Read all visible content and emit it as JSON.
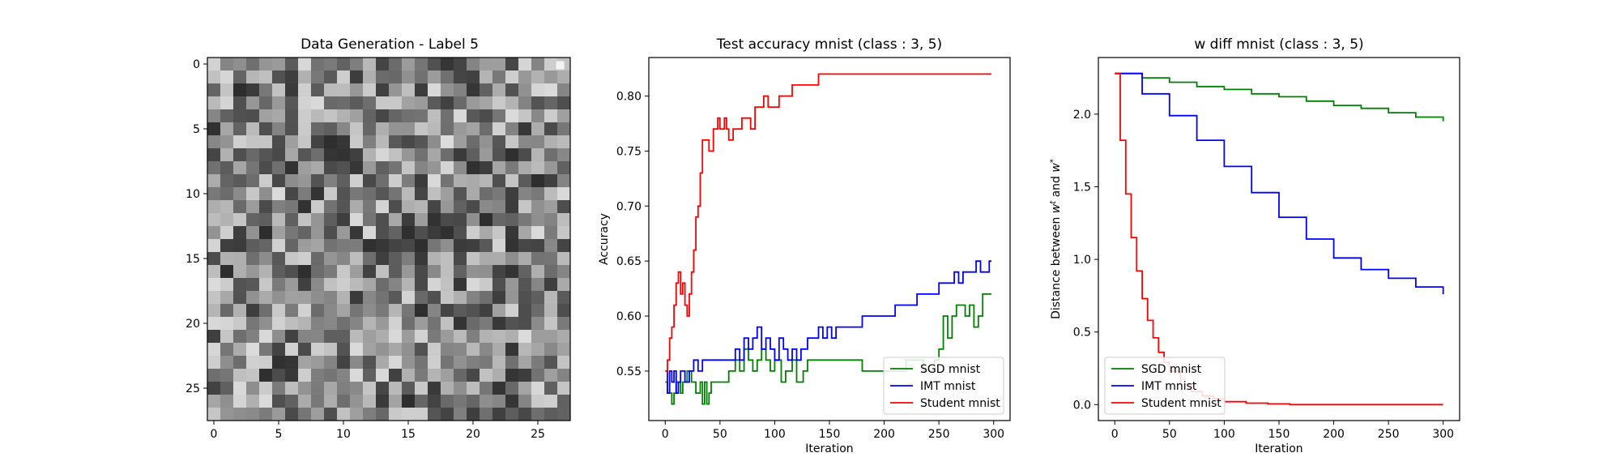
{
  "chart_data": [
    {
      "type": "heatmap",
      "title": "Data Generation - Label 5",
      "colormap": "gray",
      "xticks": [
        0,
        5,
        10,
        15,
        20,
        25
      ],
      "yticks": [
        0,
        5,
        10,
        15,
        20,
        25
      ],
      "xlim": [
        -0.5,
        27.5
      ],
      "ylim": [
        27.5,
        -0.5
      ],
      "rows": 28,
      "cols": 28,
      "legend": "top-right (empty)"
    },
    {
      "type": "line",
      "title": "Test accuracy mnist (class : 3, 5)",
      "xlabel": "Iteration",
      "ylabel": "Accuracy",
      "xlim": [
        -15,
        315
      ],
      "ylim": [
        0.505,
        0.835
      ],
      "xticks": [
        0,
        50,
        100,
        150,
        200,
        250,
        300
      ],
      "yticks": [
        0.55,
        0.6,
        0.65,
        0.7,
        0.75,
        0.8
      ],
      "tick_labels_y": [
        "0.55",
        "0.60",
        "0.65",
        "0.70",
        "0.75",
        "0.80"
      ],
      "legend": "lower-right",
      "series": [
        {
          "name": "SGD mnist",
          "color": "#008000",
          "x": [
            0,
            2,
            4,
            6,
            8,
            10,
            12,
            14,
            16,
            20,
            24,
            28,
            32,
            34,
            36,
            38,
            40,
            42,
            46,
            52,
            58,
            64,
            68,
            72,
            76,
            80,
            84,
            88,
            92,
            96,
            100,
            106,
            110,
            116,
            120,
            126,
            130,
            136,
            142,
            150,
            160,
            170,
            180,
            190,
            200,
            210,
            220,
            230,
            236,
            240,
            246,
            250,
            254,
            258,
            262,
            266,
            270,
            274,
            278,
            282,
            286,
            290,
            294,
            298
          ],
          "y": [
            0.54,
            0.53,
            0.53,
            0.52,
            0.53,
            0.54,
            0.54,
            0.53,
            0.54,
            0.55,
            0.54,
            0.53,
            0.54,
            0.52,
            0.54,
            0.52,
            0.53,
            0.54,
            0.54,
            0.54,
            0.55,
            0.56,
            0.55,
            0.57,
            0.56,
            0.55,
            0.56,
            0.57,
            0.56,
            0.55,
            0.56,
            0.54,
            0.55,
            0.56,
            0.54,
            0.55,
            0.56,
            0.56,
            0.56,
            0.56,
            0.56,
            0.56,
            0.55,
            0.55,
            0.55,
            0.55,
            0.56,
            0.56,
            0.55,
            0.55,
            0.56,
            0.57,
            0.6,
            0.58,
            0.6,
            0.61,
            0.61,
            0.6,
            0.61,
            0.59,
            0.6,
            0.62,
            0.62,
            0.62
          ]
        },
        {
          "name": "IMT mnist",
          "color": "#0000ff",
          "x": [
            0,
            2,
            4,
            6,
            8,
            10,
            12,
            14,
            18,
            22,
            26,
            30,
            34,
            40,
            46,
            50,
            56,
            60,
            64,
            68,
            72,
            76,
            80,
            84,
            88,
            92,
            96,
            100,
            104,
            108,
            112,
            116,
            120,
            124,
            130,
            136,
            140,
            144,
            148,
            152,
            156,
            160,
            170,
            180,
            190,
            200,
            210,
            220,
            230,
            240,
            250,
            256,
            260,
            264,
            268,
            272,
            276,
            280,
            284,
            288,
            292,
            296,
            298
          ],
          "y": [
            0.55,
            0.53,
            0.55,
            0.54,
            0.55,
            0.53,
            0.54,
            0.55,
            0.54,
            0.55,
            0.56,
            0.55,
            0.56,
            0.56,
            0.56,
            0.56,
            0.56,
            0.56,
            0.57,
            0.56,
            0.58,
            0.57,
            0.58,
            0.59,
            0.57,
            0.58,
            0.57,
            0.56,
            0.58,
            0.57,
            0.56,
            0.57,
            0.56,
            0.57,
            0.58,
            0.58,
            0.59,
            0.58,
            0.59,
            0.58,
            0.59,
            0.59,
            0.59,
            0.6,
            0.6,
            0.6,
            0.61,
            0.61,
            0.62,
            0.62,
            0.63,
            0.63,
            0.63,
            0.64,
            0.63,
            0.64,
            0.64,
            0.64,
            0.65,
            0.64,
            0.64,
            0.65,
            0.65
          ]
        },
        {
          "name": "Student mnist",
          "color": "#ff0000",
          "x": [
            0,
            2,
            4,
            6,
            8,
            10,
            12,
            14,
            16,
            18,
            20,
            22,
            24,
            26,
            28,
            30,
            32,
            34,
            36,
            40,
            44,
            48,
            50,
            52,
            54,
            56,
            58,
            62,
            66,
            70,
            74,
            78,
            82,
            86,
            90,
            94,
            98,
            104,
            110,
            116,
            124,
            130,
            136,
            140,
            150,
            170,
            200,
            230,
            260,
            298
          ],
          "y": [
            0.55,
            0.56,
            0.58,
            0.59,
            0.61,
            0.63,
            0.64,
            0.62,
            0.63,
            0.61,
            0.6,
            0.62,
            0.64,
            0.66,
            0.69,
            0.7,
            0.73,
            0.76,
            0.76,
            0.75,
            0.77,
            0.78,
            0.77,
            0.77,
            0.78,
            0.77,
            0.76,
            0.77,
            0.77,
            0.78,
            0.78,
            0.77,
            0.79,
            0.79,
            0.8,
            0.79,
            0.79,
            0.8,
            0.8,
            0.81,
            0.81,
            0.81,
            0.81,
            0.82,
            0.82,
            0.82,
            0.82,
            0.82,
            0.82,
            0.82
          ]
        }
      ]
    },
    {
      "type": "line",
      "title": "w diff mnist (class : 3, 5)",
      "xlabel": "Iteration",
      "ylabel": "Distance between w^t and w^*",
      "xlim": [
        -15,
        315
      ],
      "ylim": [
        -0.11,
        2.39
      ],
      "xticks": [
        0,
        50,
        100,
        150,
        200,
        250,
        300
      ],
      "yticks": [
        0.0,
        0.5,
        1.0,
        1.5,
        2.0
      ],
      "tick_labels_y": [
        "0.0",
        "0.5",
        "1.0",
        "1.5",
        "2.0"
      ],
      "legend": "lower-left",
      "series": [
        {
          "name": "SGD mnist",
          "color": "#008000",
          "x": [
            0,
            25,
            50,
            75,
            100,
            125,
            150,
            175,
            200,
            225,
            250,
            275,
            300
          ],
          "y": [
            2.28,
            2.25,
            2.22,
            2.19,
            2.17,
            2.14,
            2.12,
            2.09,
            2.06,
            2.04,
            2.01,
            1.98,
            1.95
          ]
        },
        {
          "name": "IMT mnist",
          "color": "#0000ff",
          "x": [
            0,
            25,
            50,
            75,
            100,
            125,
            150,
            175,
            200,
            225,
            250,
            275,
            300
          ],
          "y": [
            2.28,
            2.14,
            1.99,
            1.82,
            1.64,
            1.46,
            1.29,
            1.14,
            1.01,
            0.93,
            0.87,
            0.81,
            0.76
          ]
        },
        {
          "name": "Student mnist",
          "color": "#ff0000",
          "x": [
            0,
            5,
            10,
            15,
            20,
            25,
            30,
            35,
            40,
            45,
            50,
            60,
            70,
            80,
            90,
            100,
            120,
            140,
            160,
            200,
            250,
            300
          ],
          "y": [
            2.28,
            1.82,
            1.45,
            1.15,
            0.92,
            0.73,
            0.58,
            0.46,
            0.36,
            0.29,
            0.23,
            0.14,
            0.09,
            0.06,
            0.04,
            0.02,
            0.01,
            0.005,
            0.0,
            0.0,
            0.0,
            0.0
          ]
        }
      ]
    }
  ]
}
